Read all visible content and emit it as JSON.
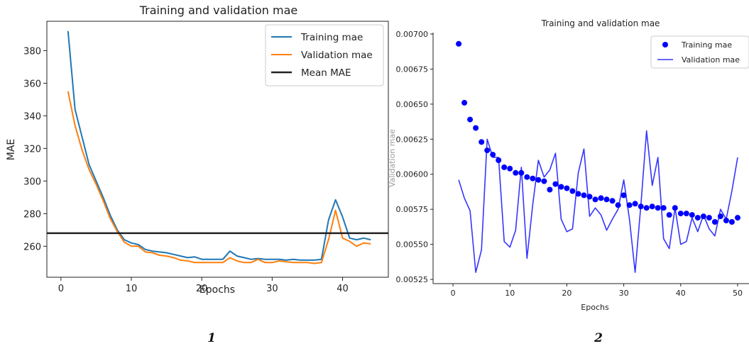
{
  "chart_data": [
    {
      "type": "line",
      "title": "Training and validation mae",
      "xlabel": "Epochs",
      "ylabel": "MAE",
      "xlim": [
        -2,
        46.5
      ],
      "ylim": [
        241,
        398
      ],
      "xticks": [
        0,
        10,
        20,
        30,
        40
      ],
      "yticks": [
        260,
        280,
        300,
        320,
        340,
        360,
        380
      ],
      "grid": false,
      "legend_position": "top-right",
      "series": [
        {
          "name": "Training mae",
          "color": "#1f77b4",
          "x": [
            1,
            2,
            3,
            4,
            5,
            6,
            7,
            8,
            9,
            10,
            11,
            12,
            13,
            14,
            15,
            16,
            17,
            18,
            19,
            20,
            21,
            22,
            23,
            24,
            25,
            26,
            27,
            28,
            29,
            30,
            31,
            32,
            33,
            34,
            35,
            36,
            37,
            38,
            39,
            40,
            41,
            42,
            43,
            44
          ],
          "y": [
            392,
            344,
            327,
            310,
            300,
            290,
            279,
            270,
            264,
            262,
            261,
            258,
            257,
            256.5,
            256,
            255,
            254,
            253,
            253.5,
            252,
            252,
            252,
            252,
            257,
            254,
            253,
            252,
            252.5,
            252,
            252,
            252,
            251.5,
            252,
            251.5,
            251.5,
            251.5,
            252,
            276,
            288.5,
            278,
            265,
            264,
            265,
            264
          ]
        },
        {
          "name": "Validation mae",
          "color": "#ff7f0e",
          "x": [
            1,
            2,
            3,
            4,
            5,
            6,
            7,
            8,
            9,
            10,
            11,
            12,
            13,
            14,
            15,
            16,
            17,
            18,
            19,
            20,
            21,
            22,
            23,
            24,
            25,
            26,
            27,
            28,
            29,
            30,
            31,
            32,
            33,
            34,
            35,
            36,
            37,
            38,
            39,
            40,
            41,
            42,
            43,
            44
          ],
          "y": [
            355,
            334,
            319,
            307,
            298,
            288,
            277,
            269,
            262.5,
            260,
            260,
            256.5,
            256,
            254.5,
            254,
            253,
            251.5,
            251,
            250,
            250,
            250,
            250,
            250,
            253,
            251,
            250,
            250,
            252,
            250,
            250,
            251,
            250.5,
            250,
            250,
            250,
            249.5,
            250,
            264,
            282,
            265,
            263,
            260,
            262,
            261.5
          ]
        },
        {
          "name": "Mean MAE",
          "color": "#222222",
          "type": "hline",
          "y": 268
        }
      ]
    },
    {
      "type": "scatter",
      "title": "Training and validation mae",
      "xlabel": "Epochs",
      "ylabel": "Validation mae",
      "xlim": [
        -3.5,
        52
      ],
      "ylim": [
        0.00522,
        0.00701
      ],
      "xticks": [
        0,
        10,
        20,
        30,
        40,
        50
      ],
      "yticks": [
        0.00525,
        0.0055,
        0.00575,
        0.006,
        0.00625,
        0.0065,
        0.00675,
        0.007
      ],
      "ytick_labels": [
        "0.00525",
        "0.00550",
        "0.00575",
        "0.00600",
        "0.00625",
        "0.00650",
        "0.00675",
        "0.00700"
      ],
      "grid": false,
      "legend_position": "top-right",
      "series": [
        {
          "name": "Training mae",
          "color": "#0000ff",
          "style": "points",
          "x": [
            1,
            2,
            3,
            4,
            5,
            6,
            7,
            8,
            9,
            10,
            11,
            12,
            13,
            14,
            15,
            16,
            17,
            18,
            19,
            20,
            21,
            22,
            23,
            24,
            25,
            26,
            27,
            28,
            29,
            30,
            31,
            32,
            33,
            34,
            35,
            36,
            37,
            38,
            39,
            40,
            41,
            42,
            43,
            44,
            45,
            46,
            47,
            48,
            49,
            50
          ],
          "y": [
            0.00693,
            0.00651,
            0.00639,
            0.00633,
            0.00623,
            0.00617,
            0.00614,
            0.0061,
            0.00605,
            0.00604,
            0.00601,
            0.00601,
            0.00598,
            0.00597,
            0.00596,
            0.00595,
            0.00589,
            0.00593,
            0.00591,
            0.0059,
            0.00588,
            0.00586,
            0.00585,
            0.00584,
            0.00582,
            0.00583,
            0.00582,
            0.00581,
            0.00578,
            0.00585,
            0.00578,
            0.00579,
            0.00577,
            0.00576,
            0.00577,
            0.00576,
            0.00576,
            0.00571,
            0.00576,
            0.00572,
            0.00572,
            0.00571,
            0.00569,
            0.0057,
            0.00569,
            0.00566,
            0.0057,
            0.00567,
            0.00566,
            0.00569
          ]
        },
        {
          "name": "Validation mae",
          "color": "#3535ff",
          "style": "line",
          "x": [
            1,
            2,
            3,
            4,
            5,
            6,
            7,
            8,
            9,
            10,
            11,
            12,
            13,
            14,
            15,
            16,
            17,
            18,
            19,
            20,
            21,
            22,
            23,
            24,
            25,
            26,
            27,
            28,
            29,
            30,
            31,
            32,
            33,
            34,
            35,
            36,
            37,
            38,
            39,
            40,
            41,
            42,
            43,
            44,
            45,
            46,
            47,
            48,
            49,
            50
          ],
          "y": [
            0.00596,
            0.00583,
            0.00574,
            0.0053,
            0.00546,
            0.00625,
            0.00612,
            0.00612,
            0.00552,
            0.00548,
            0.0056,
            0.00605,
            0.0054,
            0.00578,
            0.0061,
            0.00598,
            0.00603,
            0.00615,
            0.00568,
            0.00559,
            0.00561,
            0.00601,
            0.00618,
            0.0057,
            0.00576,
            0.00571,
            0.0056,
            0.00568,
            0.00575,
            0.00596,
            0.00568,
            0.0053,
            0.00578,
            0.00631,
            0.00592,
            0.00612,
            0.00554,
            0.00547,
            0.00576,
            0.0055,
            0.00552,
            0.00569,
            0.00559,
            0.00571,
            0.00561,
            0.00556,
            0.00575,
            0.00568,
            0.00588,
            0.00612
          ]
        }
      ]
    }
  ],
  "captions": [
    "1",
    "2"
  ]
}
